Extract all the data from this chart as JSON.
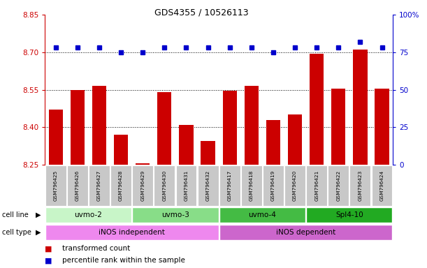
{
  "title": "GDS4355 / 10526113",
  "samples": [
    "GSM796425",
    "GSM796426",
    "GSM796427",
    "GSM796428",
    "GSM796429",
    "GSM796430",
    "GSM796431",
    "GSM796432",
    "GSM796417",
    "GSM796418",
    "GSM796419",
    "GSM796420",
    "GSM796421",
    "GSM796422",
    "GSM796423",
    "GSM796424"
  ],
  "bar_values": [
    8.47,
    8.55,
    8.565,
    8.37,
    8.255,
    8.54,
    8.41,
    8.345,
    8.545,
    8.565,
    8.43,
    8.45,
    8.695,
    8.555,
    8.71,
    8.555
  ],
  "dot_values": [
    78,
    78,
    78,
    75,
    75,
    78,
    78,
    78,
    78,
    78,
    75,
    78,
    78,
    78,
    82,
    78
  ],
  "ymin": 8.25,
  "ymax": 8.85,
  "y2min": 0,
  "y2max": 100,
  "yticks": [
    8.25,
    8.4,
    8.55,
    8.7,
    8.85
  ],
  "y2ticks": [
    0,
    25,
    50,
    75,
    100
  ],
  "cell_lines": [
    {
      "label": "uvmo-2",
      "start": 0,
      "end": 4,
      "color": "#c8f5c8"
    },
    {
      "label": "uvmo-3",
      "start": 4,
      "end": 8,
      "color": "#88dd88"
    },
    {
      "label": "uvmo-4",
      "start": 8,
      "end": 12,
      "color": "#44bb44"
    },
    {
      "label": "Spl4-10",
      "start": 12,
      "end": 16,
      "color": "#22aa22"
    }
  ],
  "cell_types": [
    {
      "label": "iNOS independent",
      "start": 0,
      "end": 8,
      "color": "#ee88ee"
    },
    {
      "label": "iNOS dependent",
      "start": 8,
      "end": 16,
      "color": "#cc66cc"
    }
  ],
  "bar_color": "#cc0000",
  "dot_color": "#0000cc",
  "bar_bottom": 8.25,
  "bg_color": "#ffffff",
  "left_axis_color": "#cc0000",
  "right_axis_color": "#0000cc",
  "sample_box_color": "#c8c8c8"
}
